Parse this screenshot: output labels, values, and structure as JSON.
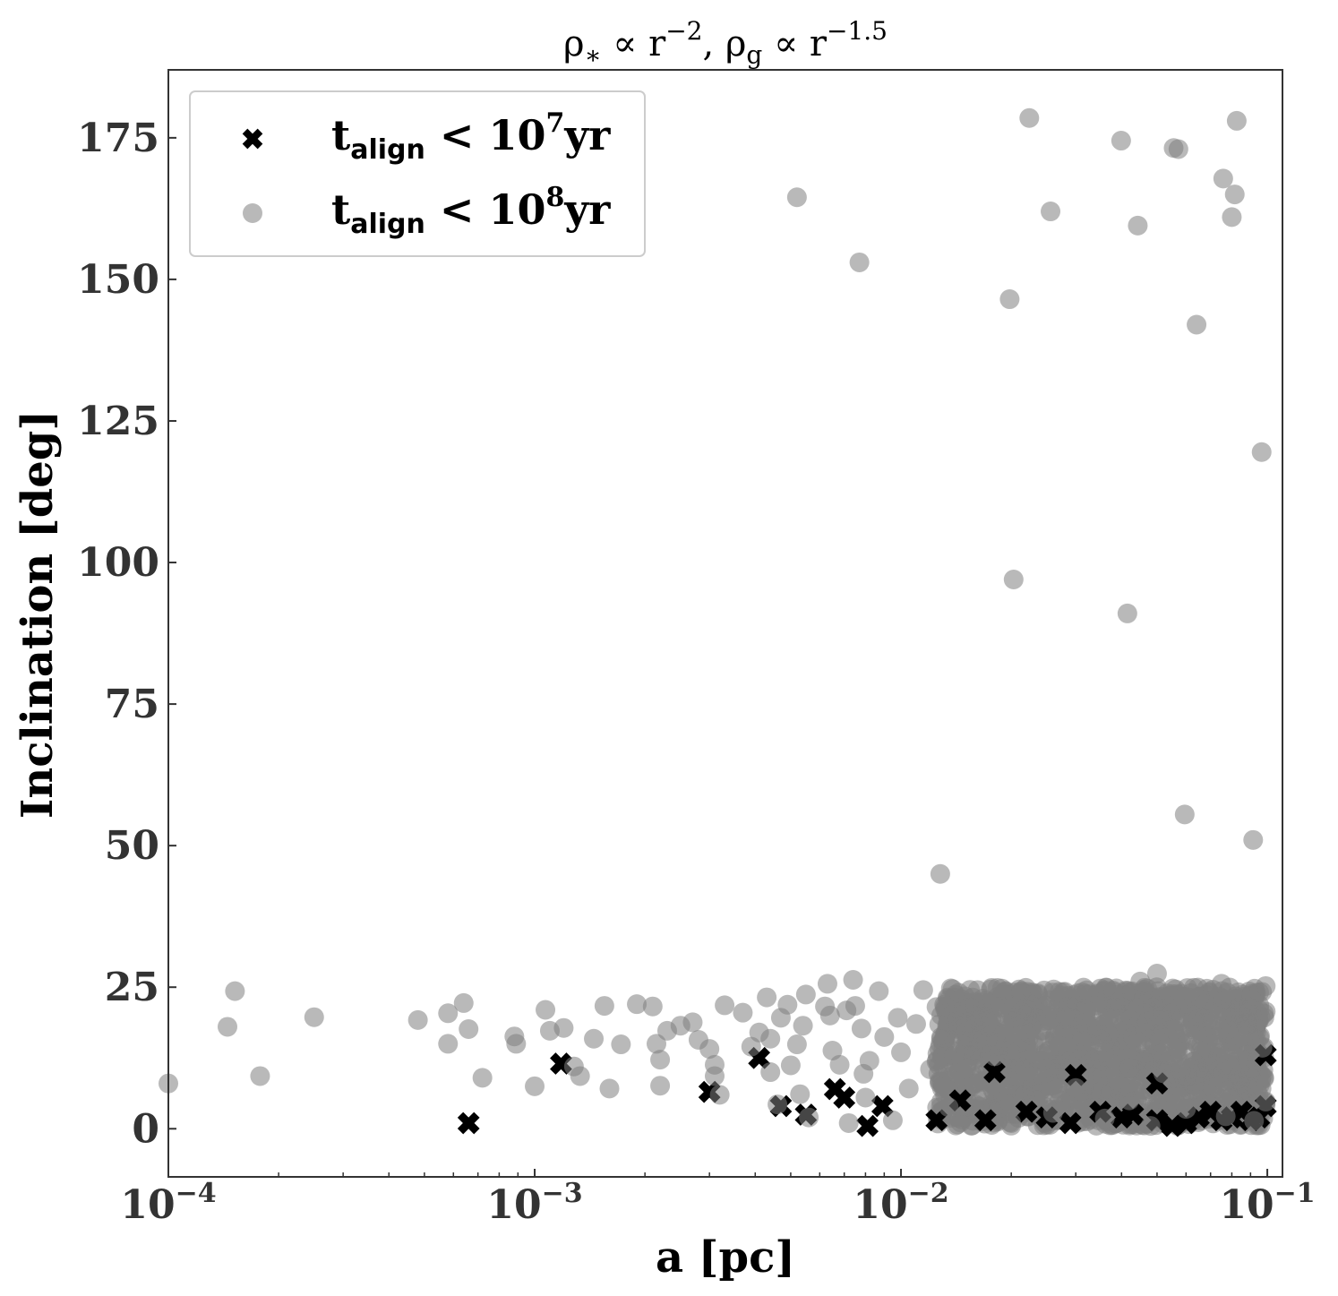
{
  "chart_data": {
    "type": "scatter",
    "title": {
      "parts": [
        {
          "text": "ρ",
          "style": "normal"
        },
        {
          "text": "∗",
          "style": "sub"
        },
        {
          "text": " ∝ r",
          "style": "normal"
        },
        {
          "text": "−2",
          "style": "sup"
        },
        {
          "text": ", ρ",
          "style": "normal"
        },
        {
          "text": "g",
          "style": "sub"
        },
        {
          "text": " ∝ r",
          "style": "normal"
        },
        {
          "text": "−1.5",
          "style": "sup"
        }
      ]
    },
    "xlabel": "a [pc]",
    "ylabel": "Inclination [deg]",
    "x_scale": "log",
    "xlim": [
      0.0001,
      0.11
    ],
    "ylim": [
      -8.5,
      187
    ],
    "x_tick_labels": [
      {
        "base": "10",
        "exp": "−4"
      },
      {
        "base": "10",
        "exp": "−3"
      },
      {
        "base": "10",
        "exp": "−2"
      },
      {
        "base": "10",
        "exp": "−1"
      }
    ],
    "y_ticks": [
      0,
      25,
      50,
      75,
      100,
      125,
      150,
      175
    ],
    "y_tick_labels": [
      "0",
      "25",
      "50",
      "75",
      "100",
      "125",
      "150",
      "175"
    ],
    "legend": {
      "placement": "upper-left",
      "entries": [
        {
          "label_main": "t",
          "label_sub": "align",
          "label_rest": " < 10",
          "label_sup": "7",
          "label_end": "yr",
          "marker": "x",
          "color": "#000000"
        },
        {
          "label_main": "t",
          "label_sub": "align",
          "label_rest": " < 10",
          "label_sup": "8",
          "label_end": "yr",
          "marker": "circle",
          "color": "#808080"
        }
      ]
    },
    "series": [
      {
        "marker": "x",
        "color": "#000000",
        "points": [
          [
            0.00066,
            1
          ],
          [
            0.00118,
            11.5
          ],
          [
            0.003,
            6.5
          ],
          [
            0.0041,
            12.5
          ],
          [
            0.0047,
            4
          ],
          [
            0.0055,
            2.5
          ],
          [
            0.0066,
            7
          ],
          [
            0.007,
            5.5
          ],
          [
            0.0081,
            0.5
          ],
          [
            0.0089,
            4
          ],
          [
            0.0125,
            1.5
          ],
          [
            0.0145,
            5
          ],
          [
            0.017,
            1.5
          ],
          [
            0.022,
            3
          ],
          [
            0.025,
            2
          ],
          [
            0.029,
            1
          ],
          [
            0.035,
            3
          ],
          [
            0.04,
            2
          ],
          [
            0.043,
            2.5
          ],
          [
            0.05,
            1.5
          ],
          [
            0.055,
            0.5
          ],
          [
            0.06,
            1
          ],
          [
            0.065,
            2
          ],
          [
            0.07,
            3
          ],
          [
            0.075,
            1.5
          ],
          [
            0.08,
            2
          ],
          [
            0.085,
            3
          ],
          [
            0.09,
            1.5
          ],
          [
            0.095,
            2
          ],
          [
            0.099,
            4
          ],
          [
            0.099,
            13
          ],
          [
            0.05,
            8
          ],
          [
            0.03,
            9.5
          ],
          [
            0.018,
            10
          ]
        ]
      },
      {
        "marker": "circle",
        "color": "#808080",
        "points": [
          [
            0.0001,
            8
          ],
          [
            0.000145,
            18
          ],
          [
            0.000152,
            24.3
          ],
          [
            0.000178,
            9.3
          ],
          [
            0.00025,
            19.7
          ],
          [
            0.00048,
            19.2
          ],
          [
            0.00058,
            20.4
          ],
          [
            0.00058,
            15
          ],
          [
            0.00064,
            22.2
          ],
          [
            0.00066,
            17.6
          ],
          [
            0.00072,
            9
          ],
          [
            0.00088,
            16.3
          ],
          [
            0.00089,
            15
          ],
          [
            0.001,
            7.5
          ],
          [
            0.00107,
            21
          ],
          [
            0.0011,
            17.3
          ],
          [
            0.0012,
            17.8
          ],
          [
            0.00128,
            11
          ],
          [
            0.00133,
            9.3
          ],
          [
            0.00145,
            15.9
          ],
          [
            0.00155,
            21.7
          ],
          [
            0.0016,
            7.1
          ],
          [
            0.00172,
            14.9
          ],
          [
            0.0019,
            22
          ],
          [
            0.0021,
            21.6
          ],
          [
            0.00215,
            15
          ],
          [
            0.0022,
            12.2
          ],
          [
            0.0022,
            7.6
          ],
          [
            0.0023,
            17.3
          ],
          [
            0.0025,
            18.2
          ],
          [
            0.0027,
            18.8
          ],
          [
            0.0028,
            15.7
          ],
          [
            0.003,
            14.1
          ],
          [
            0.0031,
            11.3
          ],
          [
            0.0031,
            9.3
          ],
          [
            0.0032,
            6
          ],
          [
            0.0033,
            21.8
          ],
          [
            0.0037,
            20.5
          ],
          [
            0.0039,
            14.5
          ],
          [
            0.0041,
            17
          ],
          [
            0.0043,
            23.2
          ],
          [
            0.0044,
            15.9
          ],
          [
            0.0044,
            10
          ],
          [
            0.0046,
            4.3
          ],
          [
            0.0047,
            19.6
          ],
          [
            0.0049,
            21.9
          ],
          [
            0.005,
            11.2
          ],
          [
            0.0052,
            14.9
          ],
          [
            0.0053,
            6.1
          ],
          [
            0.0054,
            18.2
          ],
          [
            0.0055,
            23.7
          ],
          [
            0.0056,
            2
          ],
          [
            0.0062,
            21.6
          ],
          [
            0.0063,
            25.6
          ],
          [
            0.0064,
            20
          ],
          [
            0.0065,
            13.8
          ],
          [
            0.0068,
            11.3
          ],
          [
            0.0071,
            20.9
          ],
          [
            0.0072,
            1
          ],
          [
            0.0074,
            26.3
          ],
          [
            0.0075,
            21.7
          ],
          [
            0.0078,
            17.7
          ],
          [
            0.0079,
            9.7
          ],
          [
            0.008,
            5.5
          ],
          [
            0.0082,
            12
          ],
          [
            0.0087,
            24.3
          ],
          [
            0.009,
            16.2
          ],
          [
            0.0095,
            1.5
          ],
          [
            0.0098,
            19.6
          ],
          [
            0.01,
            13.5
          ],
          [
            0.0105,
            7.1
          ],
          [
            0.011,
            18.5
          ],
          [
            0.0115,
            24.5
          ],
          [
            0.012,
            10.5
          ],
          [
            0.0125,
            21.5
          ],
          [
            0.013,
            15.6
          ],
          [
            0.0135,
            3.8
          ],
          [
            0.014,
            23.2
          ],
          [
            0.015,
            18.4
          ],
          [
            0.016,
            8
          ],
          [
            0.017,
            22.6
          ],
          [
            0.018,
            12.8
          ],
          [
            0.019,
            5.5
          ],
          [
            0.02,
            1
          ],
          [
            0.021,
            24.6
          ],
          [
            0.022,
            17.1
          ],
          [
            0.023,
            9.3
          ],
          [
            0.025,
            20
          ],
          [
            0.026,
            2.8
          ],
          [
            0.027,
            14.6
          ],
          [
            0.028,
            24.2
          ],
          [
            0.03,
            7.2
          ],
          [
            0.032,
            19.6
          ],
          [
            0.034,
            11.6
          ],
          [
            0.036,
            1.8
          ],
          [
            0.038,
            24.4
          ],
          [
            0.04,
            15.8
          ],
          [
            0.042,
            5
          ],
          [
            0.045,
            26
          ],
          [
            0.047,
            18.9
          ],
          [
            0.048,
            0.5
          ],
          [
            0.05,
            27.4
          ],
          [
            0.052,
            9.8
          ],
          [
            0.055,
            22.3
          ],
          [
            0.057,
            13.7
          ],
          [
            0.06,
            3.5
          ],
          [
            0.063,
            24.9
          ],
          [
            0.066,
            17.2
          ],
          [
            0.068,
            7.5
          ],
          [
            0.07,
            20.6
          ],
          [
            0.072,
            11.1
          ],
          [
            0.075,
            25.6
          ],
          [
            0.077,
            2.2
          ],
          [
            0.08,
            15.3
          ],
          [
            0.082,
            22.9
          ],
          [
            0.085,
            6.6
          ],
          [
            0.087,
            18.6
          ],
          [
            0.09,
            10.3
          ],
          [
            0.092,
            1.4
          ],
          [
            0.095,
            24.1
          ],
          [
            0.097,
            14.3
          ],
          [
            0.099,
            4.8
          ],
          [
            0.099,
            20.7
          ],
          [
            0.099,
            25.2
          ],
          [
            0.098,
            9.1
          ],
          [
            0.0052,
            164.5
          ],
          [
            0.0077,
            153
          ],
          [
            0.0128,
            45
          ],
          [
            0.0198,
            146.5
          ],
          [
            0.0203,
            97
          ],
          [
            0.0224,
            178.5
          ],
          [
            0.0256,
            162
          ],
          [
            0.0399,
            174.5
          ],
          [
            0.0415,
            91
          ],
          [
            0.0443,
            159.5
          ],
          [
            0.0555,
            173.2
          ],
          [
            0.0572,
            173
          ],
          [
            0.0595,
            55.5
          ],
          [
            0.0641,
            142
          ],
          [
            0.0758,
            167.8
          ],
          [
            0.08,
            161
          ],
          [
            0.0815,
            165
          ],
          [
            0.0825,
            178
          ],
          [
            0.0915,
            51
          ],
          [
            0.0965,
            119.5
          ]
        ]
      }
    ],
    "dense_region": {
      "x_range": [
        0.0125,
        0.099
      ],
      "y_range": [
        0.5,
        25
      ],
      "n_points": 1500
    }
  }
}
